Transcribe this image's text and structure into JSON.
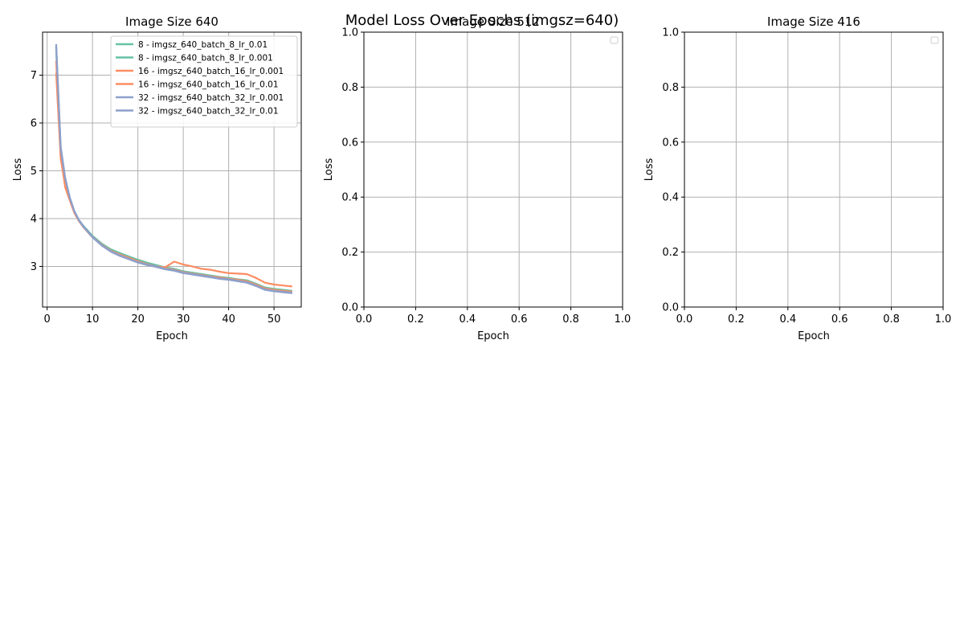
{
  "figure": {
    "suptitle": "Model Loss Over Epochs (imgsz=640)"
  },
  "chart_data": [
    {
      "type": "line",
      "title": "Image Size 640",
      "xlabel": "Epoch",
      "ylabel": "Loss",
      "xlim": [
        -1,
        56
      ],
      "ylim": [
        2.15,
        7.9
      ],
      "xticks": [
        0,
        10,
        20,
        30,
        40,
        50
      ],
      "yticks": [
        3,
        4,
        5,
        6,
        7
      ],
      "grid": true,
      "legend": "top-right",
      "x": [
        2,
        3,
        4,
        5,
        6,
        7,
        8,
        10,
        12,
        14,
        16,
        18,
        20,
        22,
        24,
        26,
        28,
        30,
        32,
        34,
        36,
        38,
        40,
        42,
        44,
        46,
        48,
        50,
        52,
        54
      ],
      "series": [
        {
          "name": "8 - imgsz_640_batch_8_lr_0.01",
          "color": "#66c2a5",
          "values": [
            7.6,
            5.4,
            4.8,
            4.42,
            4.15,
            3.97,
            3.85,
            3.64,
            3.48,
            3.36,
            3.28,
            3.21,
            3.14,
            3.08,
            3.03,
            2.98,
            2.95,
            2.9,
            2.87,
            2.84,
            2.81,
            2.78,
            2.76,
            2.73,
            2.71,
            2.64,
            2.56,
            2.53,
            2.51,
            2.49
          ]
        },
        {
          "name": "8 - imgsz_640_batch_8_lr_0.001",
          "color": "#66c2a5",
          "values": [
            7.55,
            5.35,
            4.78,
            4.41,
            4.14,
            3.96,
            3.84,
            3.63,
            3.47,
            3.35,
            3.27,
            3.2,
            3.13,
            3.07,
            3.02,
            2.97,
            2.94,
            2.89,
            2.86,
            2.83,
            2.8,
            2.77,
            2.75,
            2.72,
            2.7,
            2.63,
            2.55,
            2.52,
            2.5,
            2.48
          ]
        },
        {
          "name": "16 - imgsz_640_batch_16_lr_0.001",
          "color": "#fc8d62",
          "values": [
            7.3,
            5.3,
            4.65,
            4.38,
            4.12,
            3.95,
            3.82,
            3.61,
            3.45,
            3.33,
            3.24,
            3.16,
            3.1,
            3.04,
            3.0,
            2.98,
            3.1,
            3.04,
            3.0,
            2.95,
            2.93,
            2.89,
            2.86,
            2.85,
            2.84,
            2.76,
            2.66,
            2.62,
            2.6,
            2.58
          ]
        },
        {
          "name": "16 - imgsz_640_batch_16_lr_0.01",
          "color": "#fc8d62",
          "values": [
            7.05,
            5.25,
            4.7,
            4.39,
            4.13,
            3.95,
            3.83,
            3.62,
            3.46,
            3.33,
            3.25,
            3.18,
            3.11,
            3.05,
            3.0,
            2.96,
            2.93,
            2.88,
            2.85,
            2.82,
            2.79,
            2.77,
            2.74,
            2.72,
            2.69,
            2.62,
            2.54,
            2.51,
            2.49,
            2.47
          ]
        },
        {
          "name": "32 - imgsz_640_batch_32_lr_0.001",
          "color": "#8da0cb",
          "values": [
            7.65,
            5.5,
            4.85,
            4.44,
            4.16,
            3.97,
            3.84,
            3.62,
            3.45,
            3.32,
            3.23,
            3.16,
            3.09,
            3.04,
            3.0,
            2.95,
            2.92,
            2.87,
            2.84,
            2.81,
            2.78,
            2.75,
            2.73,
            2.7,
            2.67,
            2.6,
            2.52,
            2.49,
            2.47,
            2.45
          ]
        },
        {
          "name": "32 - imgsz_640_batch_32_lr_0.01",
          "color": "#8da0cb",
          "values": [
            7.6,
            5.45,
            4.83,
            4.43,
            4.15,
            3.96,
            3.83,
            3.61,
            3.44,
            3.31,
            3.22,
            3.15,
            3.08,
            3.03,
            2.99,
            2.94,
            2.91,
            2.86,
            2.83,
            2.8,
            2.77,
            2.74,
            2.72,
            2.69,
            2.66,
            2.59,
            2.51,
            2.48,
            2.46,
            2.44
          ]
        }
      ]
    },
    {
      "type": "line",
      "title": "Image Size 512",
      "xlabel": "Epoch",
      "ylabel": "Loss",
      "xlim": [
        0,
        1
      ],
      "ylim": [
        0,
        1
      ],
      "xticks": [
        0.0,
        0.2,
        0.4,
        0.6,
        0.8,
        1.0
      ],
      "yticks": [
        0.0,
        0.2,
        0.4,
        0.6,
        0.8,
        1.0
      ],
      "grid": true,
      "legend": "top-right",
      "x": [],
      "series": []
    },
    {
      "type": "line",
      "title": "Image Size 416",
      "xlabel": "Epoch",
      "ylabel": "Loss",
      "xlim": [
        0,
        1
      ],
      "ylim": [
        0,
        1
      ],
      "xticks": [
        0.0,
        0.2,
        0.4,
        0.6,
        0.8,
        1.0
      ],
      "yticks": [
        0.0,
        0.2,
        0.4,
        0.6,
        0.8,
        1.0
      ],
      "grid": true,
      "legend": "top-right",
      "x": [],
      "series": []
    }
  ]
}
